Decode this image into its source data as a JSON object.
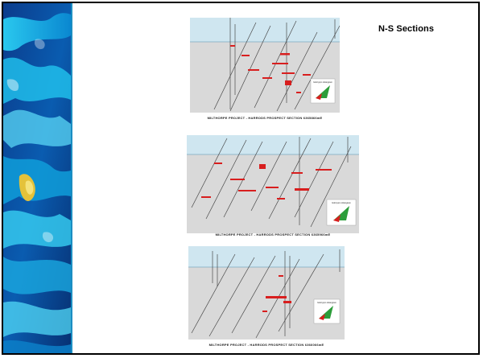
{
  "slide": {
    "title": "N-S Sections"
  },
  "sections": [
    {
      "caption": "MILTHORPE PROJECT - HARRODS PROSPECT SECTION 6365866mE",
      "legend_title": "Gold ppm Histogram"
    },
    {
      "caption": "MILTHORPE PROJECT - HARRODS PROSPECT SECTION 6365966mE",
      "legend_title": "Gold ppm Histogram"
    },
    {
      "caption": "MILTHORPE PROJECT - HARRODS PROSPECT SECTION 6366066mE",
      "legend_title": "Gold ppm Histogram"
    }
  ],
  "colors": {
    "sky": "#cfe6f0",
    "ground": "#d9d9d9",
    "drillhole": "#4a4a4a",
    "intercept": "#d81e1e",
    "accent": "#1b8ec2"
  }
}
